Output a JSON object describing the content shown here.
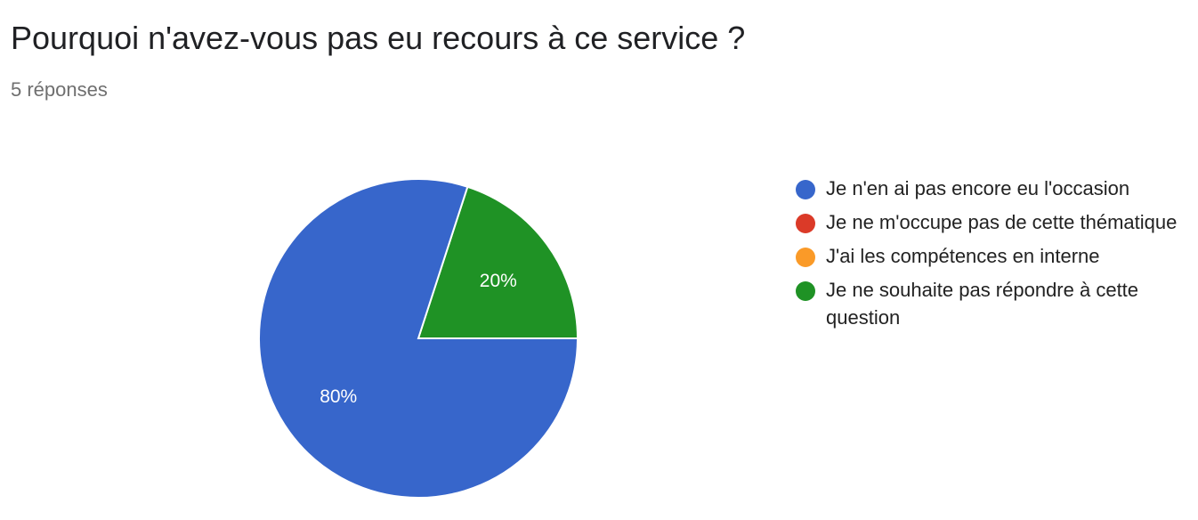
{
  "header": {
    "title": "Pourquoi n'avez-vous pas eu recours à ce service ?",
    "responses": "5 réponses"
  },
  "chart_data": {
    "type": "pie",
    "categories": [
      "Je n'en ai pas encore eu l'occasion",
      "Je ne m'occupe pas de cette thématique",
      "J'ai les compétences en interne",
      "Je ne souhaite pas répondre à cette question"
    ],
    "values": [
      80,
      0,
      0,
      20
    ],
    "unit": "%",
    "colors": [
      "#3766CB",
      "#DB3A28",
      "#FA9A28",
      "#1F9225"
    ],
    "data_labels": [
      "80%",
      "",
      "",
      "20%"
    ],
    "legend_position": "right"
  }
}
